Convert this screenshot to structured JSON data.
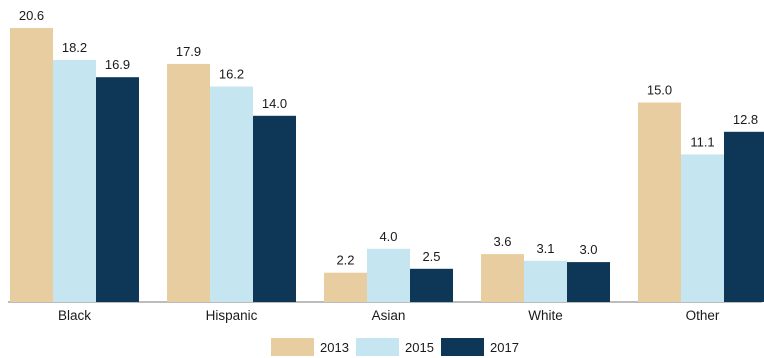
{
  "chart_data": {
    "type": "bar",
    "title": "",
    "xlabel": "",
    "ylabel": "",
    "ylim": [
      0,
      21
    ],
    "grid": false,
    "legend_position": "bottom",
    "categories": [
      "Black",
      "Hispanic",
      "Asian",
      "White",
      "Other"
    ],
    "series": [
      {
        "name": "2013",
        "color": "#E8CDA0",
        "values": [
          20.6,
          17.9,
          2.2,
          3.6,
          15.0
        ]
      },
      {
        "name": "2015",
        "color": "#C5E5F0",
        "values": [
          18.2,
          16.2,
          4.0,
          3.1,
          11.1
        ]
      },
      {
        "name": "2017",
        "color": "#0E3656",
        "values": [
          16.9,
          14.0,
          2.5,
          3.0,
          12.8
        ]
      }
    ],
    "value_labels": [
      [
        "20.6",
        "18.2",
        "16.9"
      ],
      [
        "17.9",
        "16.2",
        "14.0"
      ],
      [
        "2.2",
        "4.0",
        "2.5"
      ],
      [
        "3.6",
        "3.1",
        "3.0"
      ],
      [
        "15.0",
        "11.1",
        "12.8"
      ]
    ]
  }
}
